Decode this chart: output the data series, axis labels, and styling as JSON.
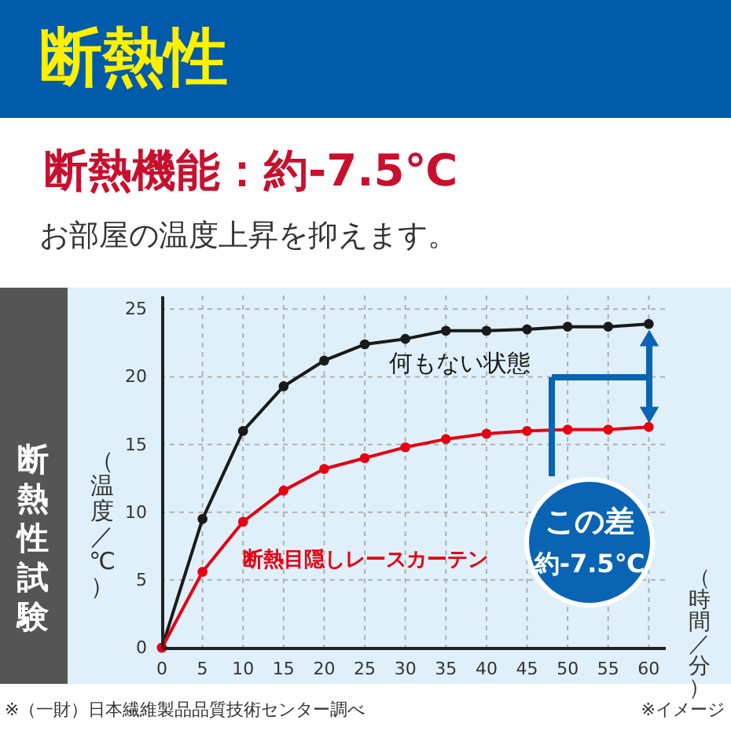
{
  "chart_data": {
    "type": "line",
    "title": "断熱性",
    "subtitle": "断熱機能：約-7.5℃",
    "annotations": [
      "お部屋の温度上昇を抑えます。",
      "断熱性試験",
      "この差",
      "約-7.5℃",
      "※（一財）日本繊維製品品質技術センター調べ",
      "※イメージ"
    ],
    "xlabel": "（時間／分）",
    "ylabel": "（温度／℃）",
    "x": [
      0,
      5,
      10,
      15,
      20,
      25,
      30,
      35,
      40,
      45,
      50,
      55,
      60
    ],
    "series": [
      {
        "name": "何もない状態",
        "color": "#1a1a1a",
        "values": [
          0,
          9.5,
          16.0,
          19.3,
          21.2,
          22.4,
          22.8,
          23.4,
          23.4,
          23.5,
          23.7,
          23.7,
          23.9
        ]
      },
      {
        "name": "断熱目隠しレースカーテン",
        "color": "#e60012",
        "values": [
          0,
          5.6,
          9.3,
          11.6,
          13.2,
          14.0,
          14.8,
          15.4,
          15.8,
          16.0,
          16.1,
          16.1,
          16.3
        ]
      }
    ],
    "xlim": [
      0,
      62
    ],
    "ylim": [
      0,
      26
    ],
    "xticks": [
      0,
      5,
      10,
      15,
      20,
      25,
      30,
      35,
      40,
      45,
      50,
      55,
      60
    ],
    "yticks": [
      0,
      5,
      10,
      15,
      20,
      25
    ],
    "grid": true,
    "marker": "circle",
    "legend": false
  }
}
